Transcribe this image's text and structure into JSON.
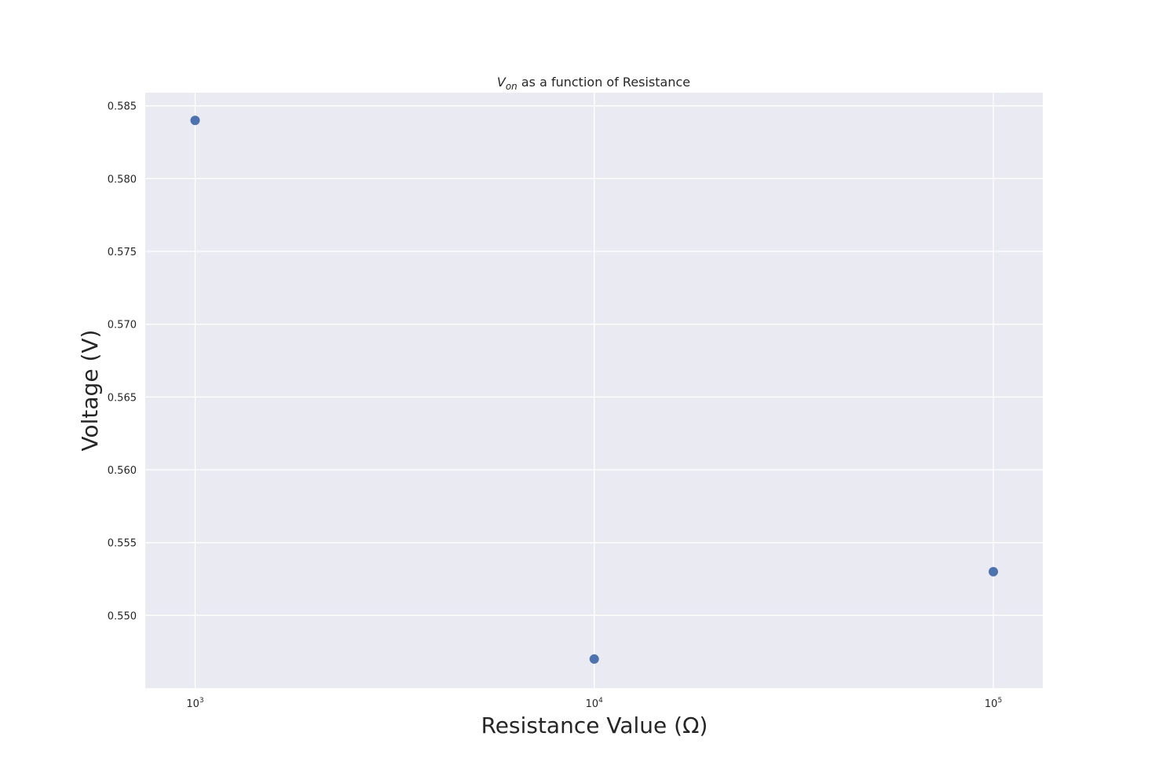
{
  "chart_data": {
    "type": "scatter",
    "title": {
      "var": "V",
      "sub": "on",
      "rest": " as a function of Resistance"
    },
    "xlabel": "Resistance Value (Ω)",
    "ylabel": "Voltage (V)",
    "x_scale": "log",
    "xlim": [
      750,
      133000
    ],
    "ylim": [
      0.545,
      0.5859
    ],
    "x_ticks": [
      {
        "value": 1000,
        "base": "10",
        "exp": "3"
      },
      {
        "value": 10000,
        "base": "10",
        "exp": "4"
      },
      {
        "value": 100000,
        "base": "10",
        "exp": "5"
      }
    ],
    "y_ticks": [
      {
        "value": 0.55,
        "label": "0.550"
      },
      {
        "value": 0.555,
        "label": "0.555"
      },
      {
        "value": 0.56,
        "label": "0.560"
      },
      {
        "value": 0.565,
        "label": "0.565"
      },
      {
        "value": 0.57,
        "label": "0.570"
      },
      {
        "value": 0.575,
        "label": "0.575"
      },
      {
        "value": 0.58,
        "label": "0.580"
      },
      {
        "value": 0.585,
        "label": "0.585"
      }
    ],
    "series": [
      {
        "x": [
          1000,
          10000,
          100000
        ],
        "y": [
          0.584,
          0.547,
          0.553
        ]
      }
    ],
    "grid": true,
    "legend": "none",
    "colors": {
      "background": "#eaeaf2",
      "grid": "#ffffff",
      "marker": "#4c72b0",
      "text": "#262626"
    }
  }
}
